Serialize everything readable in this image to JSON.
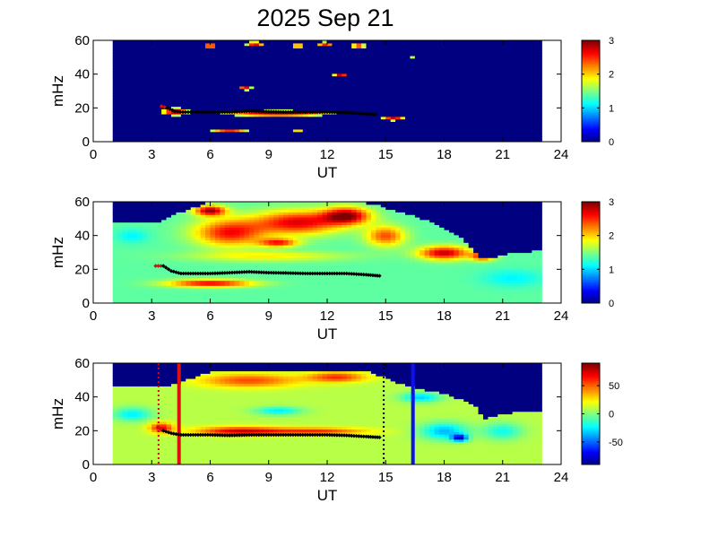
{
  "title": "2025 Sep 21",
  "chart_data": [
    {
      "type": "heatmap",
      "xlabel": "UT",
      "ylabel": "mHz",
      "xlim": [
        0,
        24
      ],
      "ylim": [
        0,
        60
      ],
      "xticks": [
        "0",
        "3",
        "6",
        "9",
        "12",
        "15",
        "18",
        "21",
        "24"
      ],
      "yticks": [
        "0",
        "20",
        "40",
        "60"
      ],
      "colorbar": {
        "min": 0,
        "max": 3,
        "ticks": [
          "0",
          "1",
          "2",
          "3"
        ]
      },
      "data_extent_ut": [
        1.0,
        23.0
      ],
      "background_value": 0,
      "blobs": [
        {
          "ut": 9.5,
          "mhz": 17,
          "sig_ut": 3.8,
          "sig_mhz": 2.3,
          "value": 3.0
        },
        {
          "ut": 4.2,
          "mhz": 18,
          "sig_ut": 0.9,
          "sig_mhz": 3.0,
          "value": 3.0
        },
        {
          "ut": 15.4,
          "mhz": 14,
          "sig_ut": 0.8,
          "sig_mhz": 1.8,
          "value": 2.8
        },
        {
          "ut": 7.0,
          "mhz": 7,
          "sig_ut": 1.4,
          "sig_mhz": 1.3,
          "value": 2.6
        },
        {
          "ut": 10.5,
          "mhz": 7,
          "sig_ut": 0.5,
          "sig_mhz": 1.2,
          "value": 2.2
        },
        {
          "ut": 7.8,
          "mhz": 32,
          "sig_ut": 0.45,
          "sig_mhz": 1.8,
          "value": 2.8
        },
        {
          "ut": 12.7,
          "mhz": 40,
          "sig_ut": 0.5,
          "sig_mhz": 1.6,
          "value": 2.9
        },
        {
          "ut": 6.0,
          "mhz": 57,
          "sig_ut": 0.5,
          "sig_mhz": 2.0,
          "value": 2.9
        },
        {
          "ut": 8.3,
          "mhz": 58,
          "sig_ut": 0.6,
          "sig_mhz": 2.0,
          "value": 2.8
        },
        {
          "ut": 10.5,
          "mhz": 57,
          "sig_ut": 0.4,
          "sig_mhz": 2.0,
          "value": 2.6
        },
        {
          "ut": 11.9,
          "mhz": 58,
          "sig_ut": 0.6,
          "sig_mhz": 1.8,
          "value": 2.6
        },
        {
          "ut": 13.6,
          "mhz": 57,
          "sig_ut": 0.5,
          "sig_mhz": 2.0,
          "value": 2.7
        },
        {
          "ut": 10.9,
          "mhz": 30,
          "sig_ut": 0.3,
          "sig_mhz": 1.0,
          "value": 2.0
        },
        {
          "ut": 12.5,
          "mhz": 30,
          "sig_ut": 0.3,
          "sig_mhz": 1.0,
          "value": 2.0
        },
        {
          "ut": 16.3,
          "mhz": 50,
          "sig_ut": 0.2,
          "sig_mhz": 1.2,
          "value": 2.0
        }
      ],
      "ridge": {
        "ut": [
          3.5,
          3.8,
          4.2,
          4.6,
          5.0,
          6.0,
          7.0,
          8.0,
          9.0,
          10.0,
          11.0,
          12.0,
          13.0,
          14.0,
          14.6
        ],
        "mhz": [
          21,
          20,
          18,
          17.5,
          17.5,
          17.5,
          17.5,
          18.2,
          17.8,
          17.5,
          17.5,
          17.5,
          17.2,
          16.5,
          16.0
        ]
      }
    },
    {
      "type": "heatmap",
      "xlabel": "UT",
      "ylabel": "mHz",
      "xlim": [
        0,
        24
      ],
      "ylim": [
        0,
        60
      ],
      "xticks": [
        "0",
        "3",
        "6",
        "9",
        "12",
        "15",
        "18",
        "21",
        "24"
      ],
      "yticks": [
        "0",
        "20",
        "40",
        "60"
      ],
      "colorbar": {
        "min": 0,
        "max": 3,
        "ticks": [
          "0",
          "1",
          "2",
          "3"
        ]
      },
      "data_extent_ut": [
        1.0,
        23.0
      ],
      "background_value": 1.4,
      "upper_cutoff_mhz": [
        {
          "ut": 1.0,
          "mhz": 48
        },
        {
          "ut": 2.5,
          "mhz": 48
        },
        {
          "ut": 3.5,
          "mhz": 48
        },
        {
          "ut": 4.5,
          "mhz": 54
        },
        {
          "ut": 6.0,
          "mhz": 60
        },
        {
          "ut": 12.0,
          "mhz": 60
        },
        {
          "ut": 14.5,
          "mhz": 59
        },
        {
          "ut": 15.0,
          "mhz": 56
        },
        {
          "ut": 16.5,
          "mhz": 52
        },
        {
          "ut": 17.5,
          "mhz": 47
        },
        {
          "ut": 19.0,
          "mhz": 38
        },
        {
          "ut": 20.0,
          "mhz": 26
        },
        {
          "ut": 21.5,
          "mhz": 30
        },
        {
          "ut": 23.0,
          "mhz": 31
        }
      ],
      "blobs": [
        {
          "ut": 7.0,
          "mhz": 42,
          "sig_ut": 1.8,
          "sig_mhz": 8.0,
          "value": 2.6
        },
        {
          "ut": 10.5,
          "mhz": 48,
          "sig_ut": 2.2,
          "sig_mhz": 7.0,
          "value": 2.7
        },
        {
          "ut": 13.0,
          "mhz": 52,
          "sig_ut": 1.2,
          "sig_mhz": 5.0,
          "value": 2.9
        },
        {
          "ut": 6.0,
          "mhz": 55,
          "sig_ut": 0.8,
          "sig_mhz": 3.0,
          "value": 2.9
        },
        {
          "ut": 9.5,
          "mhz": 36,
          "sig_ut": 1.0,
          "sig_mhz": 2.5,
          "value": 2.5
        },
        {
          "ut": 15.0,
          "mhz": 40,
          "sig_ut": 1.0,
          "sig_mhz": 6.0,
          "value": 2.4
        },
        {
          "ut": 18.0,
          "mhz": 30,
          "sig_ut": 1.3,
          "sig_mhz": 4.0,
          "value": 2.8
        },
        {
          "ut": 20.0,
          "mhz": 28,
          "sig_ut": 0.6,
          "sig_mhz": 2.5,
          "value": 2.6
        },
        {
          "ut": 6.0,
          "mhz": 12,
          "sig_ut": 2.2,
          "sig_mhz": 2.2,
          "value": 2.7
        },
        {
          "ut": 9.0,
          "mhz": 28,
          "sig_ut": 4.0,
          "sig_mhz": 3.0,
          "value": 1.9
        },
        {
          "ut": 2.0,
          "mhz": 40,
          "sig_ut": 0.8,
          "sig_mhz": 4.0,
          "value": 1.1
        },
        {
          "ut": 21.5,
          "mhz": 15,
          "sig_ut": 1.5,
          "sig_mhz": 5.0,
          "value": 1.1
        }
      ],
      "ridge": {
        "ut": [
          3.2,
          3.6,
          4.0,
          4.5,
          5.0,
          6.0,
          7.0,
          8.0,
          9.0,
          10.0,
          11.0,
          12.0,
          13.0,
          14.0,
          14.8
        ],
        "mhz": [
          22,
          22,
          19,
          17.5,
          17.5,
          17.5,
          18.0,
          18.5,
          18.0,
          17.8,
          17.5,
          17.5,
          17.5,
          16.8,
          16.0
        ]
      }
    },
    {
      "type": "heatmap",
      "xlabel": "UT",
      "ylabel": "mHz",
      "xlim": [
        0,
        24
      ],
      "ylim": [
        0,
        60
      ],
      "xticks": [
        "0",
        "3",
        "6",
        "9",
        "12",
        "15",
        "18",
        "21",
        "24"
      ],
      "yticks": [
        "0",
        "20",
        "40",
        "60"
      ],
      "colorbar": {
        "min": -90,
        "max": 90,
        "ticks": [
          "50",
          "0",
          "-50"
        ],
        "tick_values": [
          50,
          0,
          -50
        ]
      },
      "data_extent_ut": [
        1.0,
        23.0
      ],
      "background_value": 10,
      "upper_cutoff_mhz": [
        {
          "ut": 1.0,
          "mhz": 47
        },
        {
          "ut": 4.0,
          "mhz": 47
        },
        {
          "ut": 6.0,
          "mhz": 55
        },
        {
          "ut": 14.0,
          "mhz": 56
        },
        {
          "ut": 16.0,
          "mhz": 47
        },
        {
          "ut": 18.0,
          "mhz": 42
        },
        {
          "ut": 19.5,
          "mhz": 36
        },
        {
          "ut": 20.0,
          "mhz": 27
        },
        {
          "ut": 21.5,
          "mhz": 31
        },
        {
          "ut": 23.0,
          "mhz": 31
        }
      ],
      "blobs": [
        {
          "ut": 7.5,
          "mhz": 20,
          "sig_ut": 2.2,
          "sig_mhz": 2.5,
          "value": 75
        },
        {
          "ut": 11.5,
          "mhz": 20,
          "sig_ut": 2.5,
          "sig_mhz": 2.0,
          "value": 60
        },
        {
          "ut": 3.5,
          "mhz": 22,
          "sig_ut": 0.6,
          "sig_mhz": 3.0,
          "value": 70
        },
        {
          "ut": 8.0,
          "mhz": 50,
          "sig_ut": 2.5,
          "sig_mhz": 4.0,
          "value": 55
        },
        {
          "ut": 12.5,
          "mhz": 52,
          "sig_ut": 1.5,
          "sig_mhz": 3.0,
          "value": 60
        },
        {
          "ut": 9.5,
          "mhz": 32,
          "sig_ut": 1.2,
          "sig_mhz": 2.5,
          "value": -25
        },
        {
          "ut": 2.0,
          "mhz": 30,
          "sig_ut": 1.0,
          "sig_mhz": 4.0,
          "value": -25
        },
        {
          "ut": 18.0,
          "mhz": 20,
          "sig_ut": 1.2,
          "sig_mhz": 5.0,
          "value": -35
        },
        {
          "ut": 18.8,
          "mhz": 16,
          "sig_ut": 0.4,
          "sig_mhz": 2.0,
          "value": -70
        },
        {
          "ut": 16.8,
          "mhz": 40,
          "sig_ut": 1.0,
          "sig_mhz": 3.0,
          "value": -30
        },
        {
          "ut": 21.0,
          "mhz": 20,
          "sig_ut": 1.0,
          "sig_mhz": 5.0,
          "value": -20
        }
      ],
      "ridge": {
        "ut": [
          3.3,
          3.6,
          4.0,
          4.5,
          5.0,
          6.0,
          7.0,
          8.0,
          9.0,
          10.0,
          11.0,
          12.0,
          13.0,
          14.0,
          14.8
        ],
        "mhz": [
          22,
          20,
          18.5,
          17.5,
          17.5,
          17.5,
          17.2,
          17.5,
          17.5,
          17.5,
          17.5,
          17.5,
          17.2,
          16.5,
          16.0
        ]
      },
      "vertical_lines": [
        {
          "ut": 3.35,
          "style": "dotted",
          "color": "#e0000e"
        },
        {
          "ut": 4.4,
          "style": "solid",
          "color": "#dd1111"
        },
        {
          "ut": 14.9,
          "style": "dotted",
          "color": "#000000"
        },
        {
          "ut": 16.4,
          "style": "solid",
          "color": "#1010ee"
        }
      ]
    }
  ]
}
